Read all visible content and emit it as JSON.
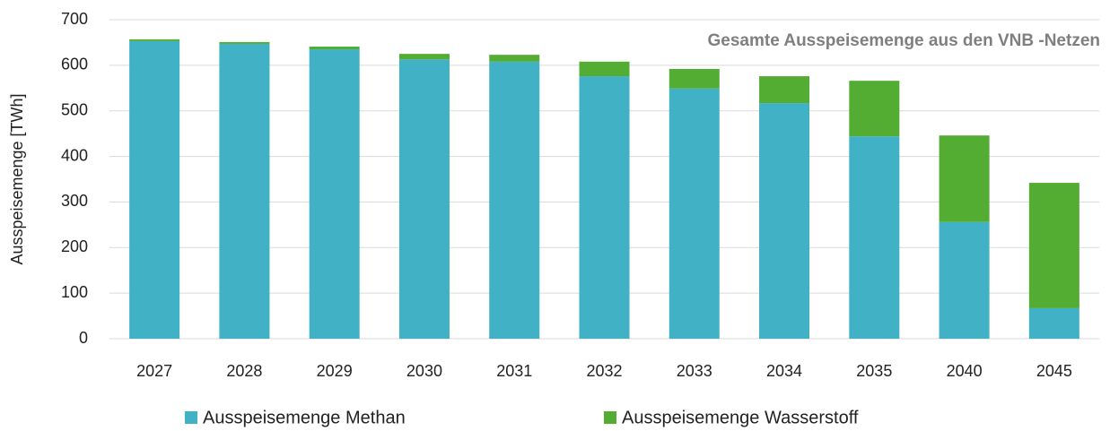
{
  "chart_data": {
    "type": "stacked_bar",
    "title": "Gesamte Ausspeisemenge aus den VNB -Netzen",
    "y_label": "Ausspeisemenge [TWh]",
    "categories": [
      "2027",
      "2028",
      "2029",
      "2030",
      "2031",
      "2032",
      "2033",
      "2034",
      "2035",
      "2040",
      "2045"
    ],
    "series": [
      {
        "name": "Ausspeisemenge Methan",
        "color": "#41b1c6",
        "values": [
          653,
          647,
          635,
          613,
          608,
          576,
          549,
          517,
          444,
          256,
          67
        ]
      },
      {
        "name": "Ausspeisemenge Wasserstoff",
        "color": "#53ad33",
        "values": [
          4,
          4,
          6,
          12,
          15,
          32,
          43,
          59,
          122,
          190,
          275
        ]
      }
    ],
    "ylim": [
      0,
      700
    ],
    "yticks": [
      0,
      100,
      200,
      300,
      400,
      500,
      600,
      700
    ],
    "grid": true,
    "legend": "bottom"
  }
}
